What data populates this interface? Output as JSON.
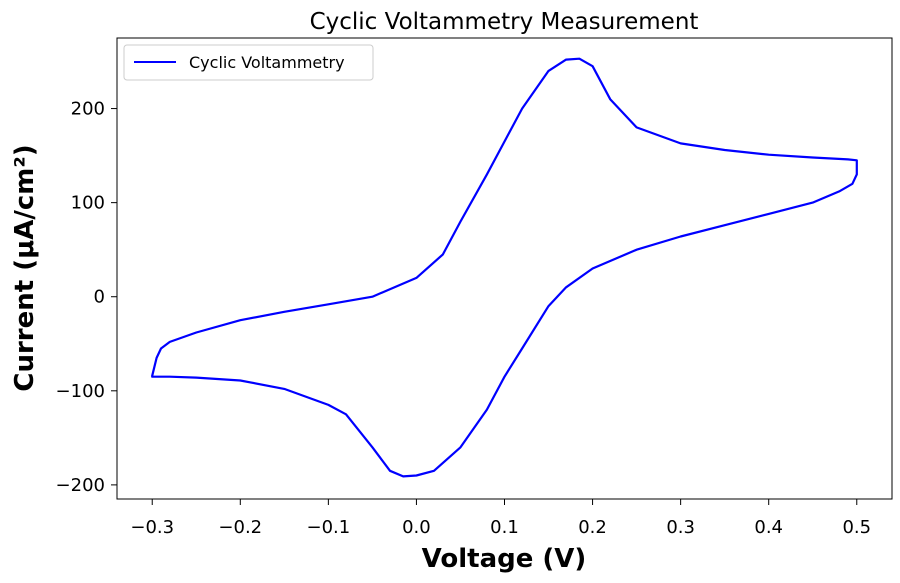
{
  "chart_data": {
    "type": "line",
    "title": "Cyclic Voltammetry Measurement",
    "xlabel": "Voltage (V)",
    "ylabel": "Current (μA/cm²)",
    "xlim": [
      -0.34,
      0.54
    ],
    "ylim": [
      -215,
      275
    ],
    "x_ticks": [
      -0.3,
      -0.2,
      -0.1,
      0.0,
      0.1,
      0.2,
      0.3,
      0.4,
      0.5
    ],
    "x_tick_labels": [
      "−0.3",
      "−0.2",
      "−0.1",
      "0.0",
      "0.1",
      "0.2",
      "0.3",
      "0.4",
      "0.5"
    ],
    "y_ticks": [
      -200,
      -100,
      0,
      100,
      200
    ],
    "y_tick_labels": [
      "−200",
      "−100",
      "0",
      "100",
      "200"
    ],
    "grid": false,
    "legend_position": "top-left",
    "series": [
      {
        "name": "Cyclic Voltammetry",
        "color": "#0000ff",
        "x": [
          -0.3,
          -0.295,
          -0.29,
          -0.28,
          -0.25,
          -0.2,
          -0.15,
          -0.1,
          -0.05,
          0.0,
          0.03,
          0.05,
          0.08,
          0.1,
          0.12,
          0.15,
          0.17,
          0.185,
          0.2,
          0.22,
          0.25,
          0.3,
          0.35,
          0.4,
          0.45,
          0.49,
          0.5,
          0.5,
          0.495,
          0.48,
          0.45,
          0.4,
          0.35,
          0.3,
          0.25,
          0.2,
          0.17,
          0.15,
          0.12,
          0.1,
          0.08,
          0.05,
          0.02,
          0.0,
          -0.015,
          -0.03,
          -0.05,
          -0.08,
          -0.1,
          -0.15,
          -0.2,
          -0.25,
          -0.28,
          -0.3,
          -0.3
        ],
        "y": [
          -84,
          -65,
          -55,
          -48,
          -38,
          -25,
          -16,
          -8,
          0,
          20,
          45,
          80,
          130,
          165,
          200,
          240,
          252,
          253,
          245,
          210,
          180,
          163,
          156,
          151,
          148,
          146,
          145,
          130,
          120,
          112,
          100,
          88,
          76,
          64,
          50,
          30,
          10,
          -10,
          -55,
          -85,
          -120,
          -160,
          -185,
          -190,
          -191,
          -185,
          -160,
          -125,
          -115,
          -98,
          -89,
          -86,
          -85,
          -85,
          -84
        ]
      }
    ]
  }
}
